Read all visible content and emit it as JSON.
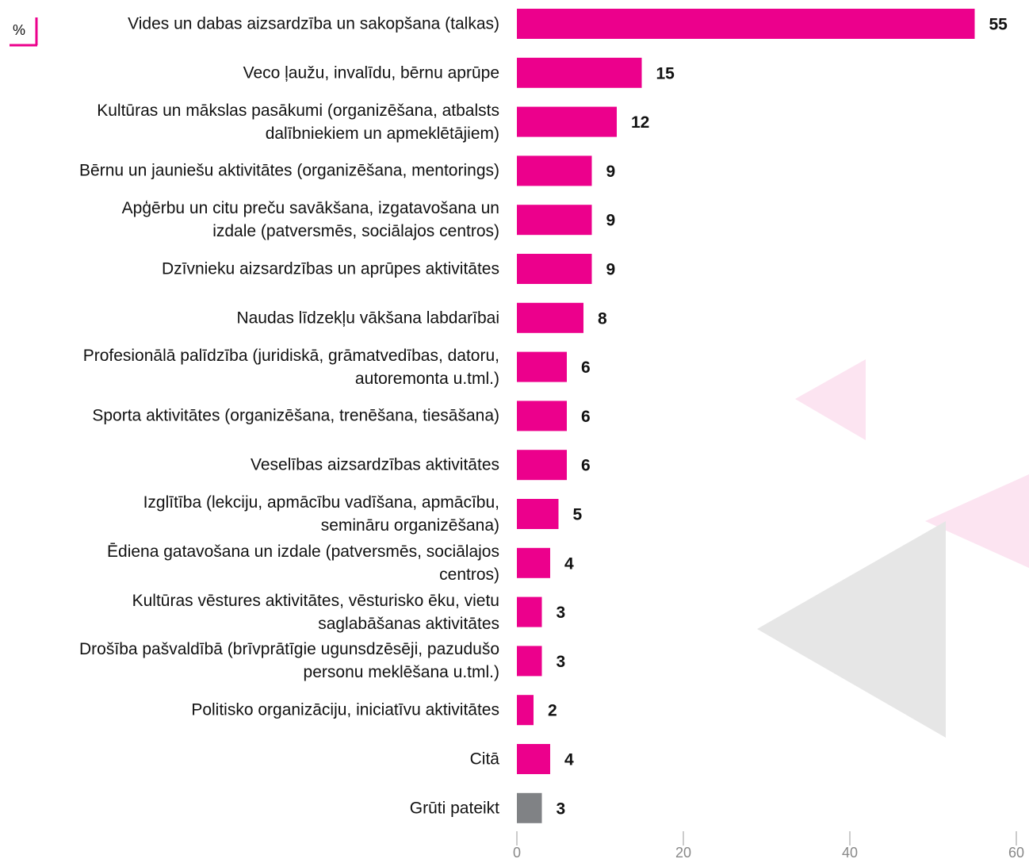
{
  "chart_data": {
    "type": "bar",
    "orientation": "horizontal",
    "unit_label": "%",
    "categories": [
      "Vides un dabas aizsardzība un sakopšana (talkas)",
      "Veco ļaužu, invalīdu, bērnu aprūpe",
      "Kultūras un mākslas pasākumi (organizēšana, atbalsts\ndalībniekiem un apmeklētājiem)",
      "Bērnu un jauniešu aktivitātes (organizēšana, mentorings)",
      "Apģērbu un citu preču savākšana, izgatavošana un\nizdale (patversmēs, sociālajos centros)",
      "Dzīvnieku aizsardzības un aprūpes aktivitātes",
      "Naudas līdzekļu vākšana labdarībai",
      "Profesionālā palīdzība (juridiskā, grāmatvedības, datoru,\nautoremonta u.tml.)",
      "Sporta aktivitātes (organizēšana, trenēšana, tiesāšana)",
      "Veselības aizsardzības aktivitātes",
      "Izglītība (lekciju, apmācību vadīšana, apmācību,\nsemināru organizēšana)",
      "Ēdiena gatavošana un izdale (patversmēs, sociālajos\ncentros)",
      "Kultūras vēstures aktivitātes, vēsturisko ēku, vietu\nsaglabāšanas aktivitātes",
      "Drošība pašvaldībā (brīvprātīgie ugunsdzēsēji, pazudušo\npersonu meklēšana u.tml.)",
      "Politisko organizāciju, iniciatīvu aktivitātes",
      "Citā",
      "Grūti pateikt"
    ],
    "values": [
      55,
      15,
      12,
      9,
      9,
      9,
      8,
      6,
      6,
      6,
      5,
      4,
      3,
      3,
      2,
      4,
      3
    ],
    "colors": [
      "#ec008c",
      "#ec008c",
      "#ec008c",
      "#ec008c",
      "#ec008c",
      "#ec008c",
      "#ec008c",
      "#ec008c",
      "#ec008c",
      "#ec008c",
      "#ec008c",
      "#ec008c",
      "#ec008c",
      "#ec008c",
      "#ec008c",
      "#ec008c",
      "#808285"
    ],
    "xlim": [
      0,
      60
    ],
    "xticks": [
      0,
      20,
      40,
      60
    ]
  }
}
